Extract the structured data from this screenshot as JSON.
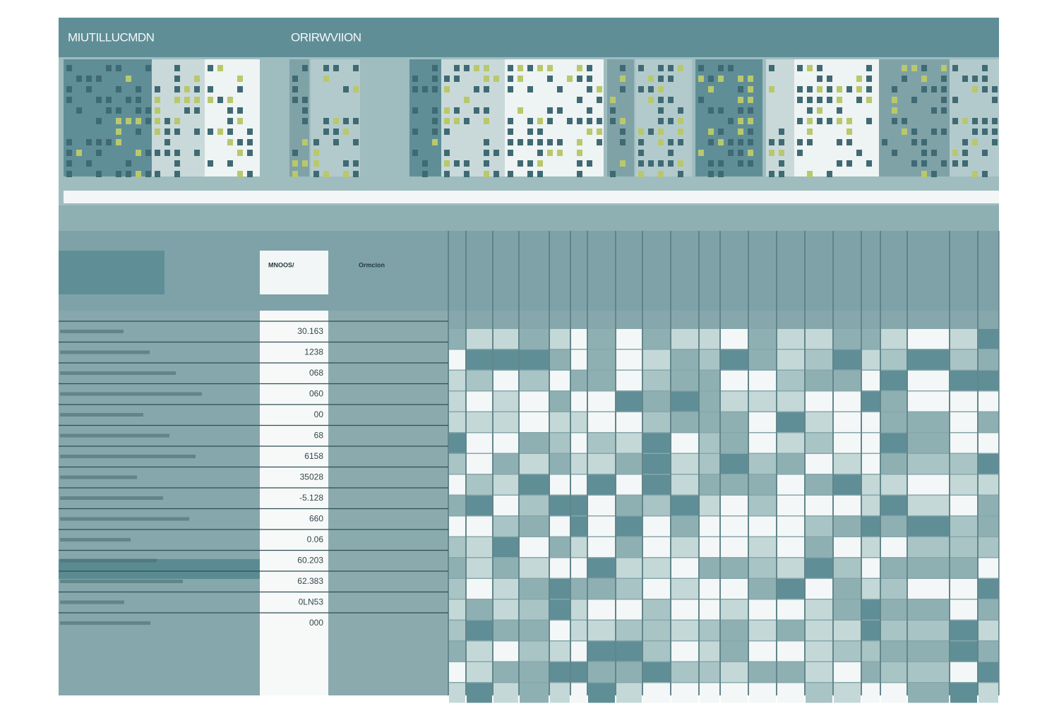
{
  "header": {
    "title": "MIUTILLUCMDN",
    "subtitle": "ORIRWVIION"
  },
  "table": {
    "headers": [
      "MNOOS/",
      "Ormcion"
    ],
    "values": [
      "30.163",
      "1238",
      "068",
      "060",
      "00",
      "68",
      "6158",
      "35028",
      "-5.128",
      "660",
      "0.06",
      "60.203",
      "62.383",
      "0LN53",
      "000"
    ]
  }
}
